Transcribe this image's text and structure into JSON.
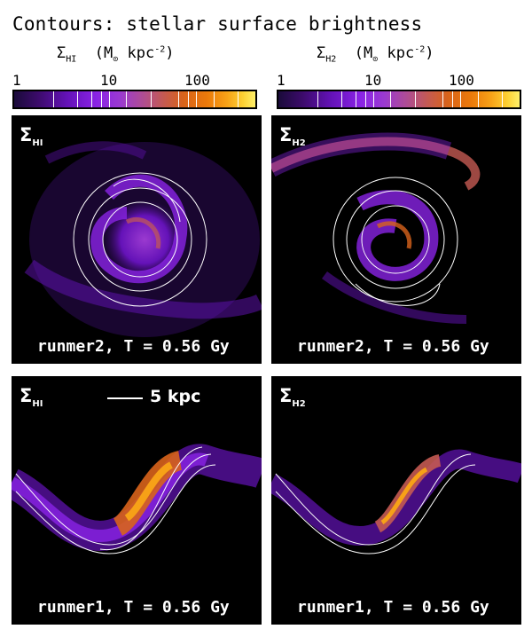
{
  "title": "Contours: stellar surface brightness",
  "colorbars": [
    {
      "symbol": "Σ",
      "sub": "HI",
      "unit_pre": "(M",
      "sun": "⊙",
      "unit_mid": " kpc",
      "exp": "-2",
      "unit_post": ")",
      "ticks": [
        "1",
        "10",
        "100"
      ]
    },
    {
      "symbol": "Σ",
      "sub": "H2",
      "unit_pre": "(M",
      "sun": "⊙",
      "unit_mid": " kpc",
      "exp": "-2",
      "unit_post": ")",
      "ticks": [
        "1",
        "10",
        "100"
      ]
    }
  ],
  "panels": [
    {
      "symbol": "Σ",
      "sub": "HI",
      "caption": "runmer2, T = 0.56 Gy"
    },
    {
      "symbol": "Σ",
      "sub": "H2",
      "caption": "runmer2, T = 0.56 Gy"
    },
    {
      "symbol": "Σ",
      "sub": "HI",
      "caption": "runmer1, T = 0.56 Gy"
    },
    {
      "symbol": "Σ",
      "sub": "H2",
      "caption": "runmer1, T = 0.56 Gy"
    }
  ],
  "scalebar": {
    "label": "5 kpc"
  },
  "colors": {
    "cmap_low": "#3c0b6b",
    "cmap_mid": "#c45a52",
    "cmap_high": "#fff06a",
    "contour": "#ffffff",
    "panel_bg": "#000000"
  }
}
